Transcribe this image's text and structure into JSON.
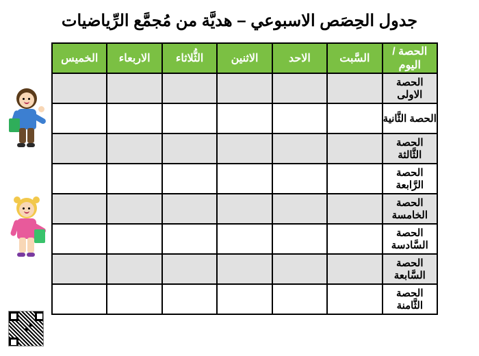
{
  "title": "جدول الحِصَص الاسبوعي – هديَّة من مُجمَّع الرِّياضيات",
  "header_bg": "#7bc043",
  "header_fg": "#ffffff",
  "row_shade": "#e1e1e1",
  "columns": [
    "الحصة / اليوم",
    "السَّبت",
    "الاحد",
    "الاثنين",
    "الثُّلاثاء",
    "الاربعاء",
    "الخميس"
  ],
  "periods": [
    "الحصة الاولى",
    "الحصة الثَّانية",
    "الحصة الثَّالثة",
    "الحصة الرَّابعة",
    "الحصة الخامسة",
    "الحصة السَّادسة",
    "الحصة السَّابعة",
    "الحصة الثَّامنة"
  ],
  "cells": [
    [
      "",
      "",
      "",
      "",
      "",
      ""
    ],
    [
      "",
      "",
      "",
      "",
      "",
      ""
    ],
    [
      "",
      "",
      "",
      "",
      "",
      ""
    ],
    [
      "",
      "",
      "",
      "",
      "",
      ""
    ],
    [
      "",
      "",
      "",
      "",
      "",
      ""
    ],
    [
      "",
      "",
      "",
      "",
      "",
      ""
    ],
    [
      "",
      "",
      "",
      "",
      "",
      ""
    ],
    [
      "",
      "",
      "",
      "",
      "",
      ""
    ]
  ]
}
